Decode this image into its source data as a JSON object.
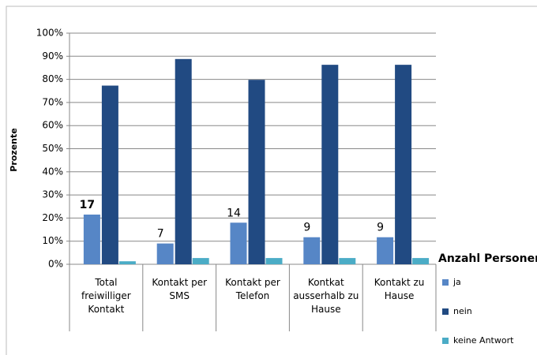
{
  "chart_data": {
    "type": "bar",
    "y_label": "Prozente",
    "legend_title": "Anzahl Personen",
    "categories": [
      "Total freiwilliger Kontakt",
      "Kontakt per SMS",
      "Kontakt per Telefon",
      "Kontkat ausserhalb zu Hause",
      "Kontakt zu Hause"
    ],
    "series": [
      {
        "name": "ja",
        "color": "#5686c6",
        "values": [
          21.5,
          9,
          18,
          11.7,
          11.7
        ],
        "count_labels": [
          17,
          7,
          14,
          9,
          9
        ]
      },
      {
        "name": "nein",
        "color": "#214a82",
        "values": [
          77.3,
          88.8,
          79.8,
          86.3,
          86.3
        ]
      },
      {
        "name": "keine Antwort",
        "color": "#4bacc6",
        "values": [
          1.3,
          2.7,
          2.7,
          2.7,
          2.7
        ]
      }
    ],
    "ylim": [
      0,
      100
    ],
    "yticks": [
      {
        "value": 0,
        "label": "0%"
      },
      {
        "value": 10,
        "label": "10%"
      },
      {
        "value": 20,
        "label": "20%"
      },
      {
        "value": 30,
        "label": "30%"
      },
      {
        "value": 40,
        "label": "40%"
      },
      {
        "value": 50,
        "label": "50%"
      },
      {
        "value": 60,
        "label": "60%"
      },
      {
        "value": 70,
        "label": "70%"
      },
      {
        "value": 80,
        "label": "80%"
      },
      {
        "value": 90,
        "label": "90%"
      },
      {
        "value": 100,
        "label": "100%"
      }
    ],
    "grid": true,
    "legend": "right"
  }
}
